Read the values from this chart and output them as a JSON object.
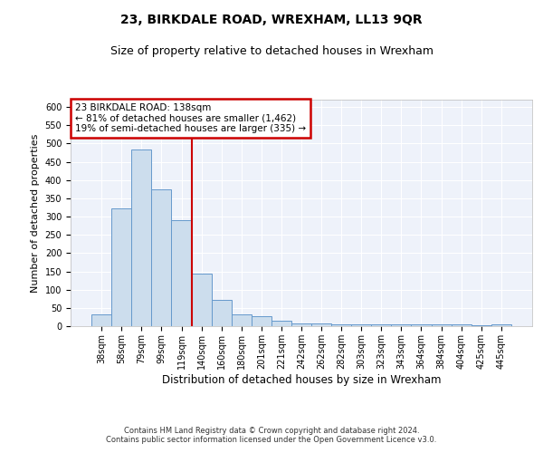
{
  "title": "23, BIRKDALE ROAD, WREXHAM, LL13 9QR",
  "subtitle": "Size of property relative to detached houses in Wrexham",
  "xlabel": "Distribution of detached houses by size in Wrexham",
  "ylabel": "Number of detached properties",
  "bar_color": "#ccdded",
  "bar_edge_color": "#6699cc",
  "background_color": "#eef2fa",
  "grid_color": "#ffffff",
  "categories": [
    "38sqm",
    "58sqm",
    "79sqm",
    "99sqm",
    "119sqm",
    "140sqm",
    "160sqm",
    "180sqm",
    "201sqm",
    "221sqm",
    "242sqm",
    "262sqm",
    "282sqm",
    "303sqm",
    "323sqm",
    "343sqm",
    "364sqm",
    "384sqm",
    "404sqm",
    "425sqm",
    "445sqm"
  ],
  "values": [
    32,
    322,
    483,
    375,
    289,
    143,
    73,
    32,
    28,
    15,
    8,
    8,
    6,
    5,
    5,
    5,
    5,
    5,
    5,
    2,
    6
  ],
  "ylim": [
    0,
    620
  ],
  "yticks": [
    0,
    50,
    100,
    150,
    200,
    250,
    300,
    350,
    400,
    450,
    500,
    550,
    600
  ],
  "property_line_x": 4.5,
  "annotation_text": "23 BIRKDALE ROAD: 138sqm\n← 81% of detached houses are smaller (1,462)\n19% of semi-detached houses are larger (335) →",
  "annotation_box_color": "#ffffff",
  "annotation_border_color": "#cc0000",
  "footer_line1": "Contains HM Land Registry data © Crown copyright and database right 2024.",
  "footer_line2": "Contains public sector information licensed under the Open Government Licence v3.0.",
  "property_line_color": "#cc0000",
  "title_fontsize": 10,
  "subtitle_fontsize": 9,
  "ylabel_fontsize": 8,
  "xlabel_fontsize": 8.5,
  "footer_fontsize": 6,
  "annot_fontsize": 7.5,
  "tick_fontsize": 7
}
